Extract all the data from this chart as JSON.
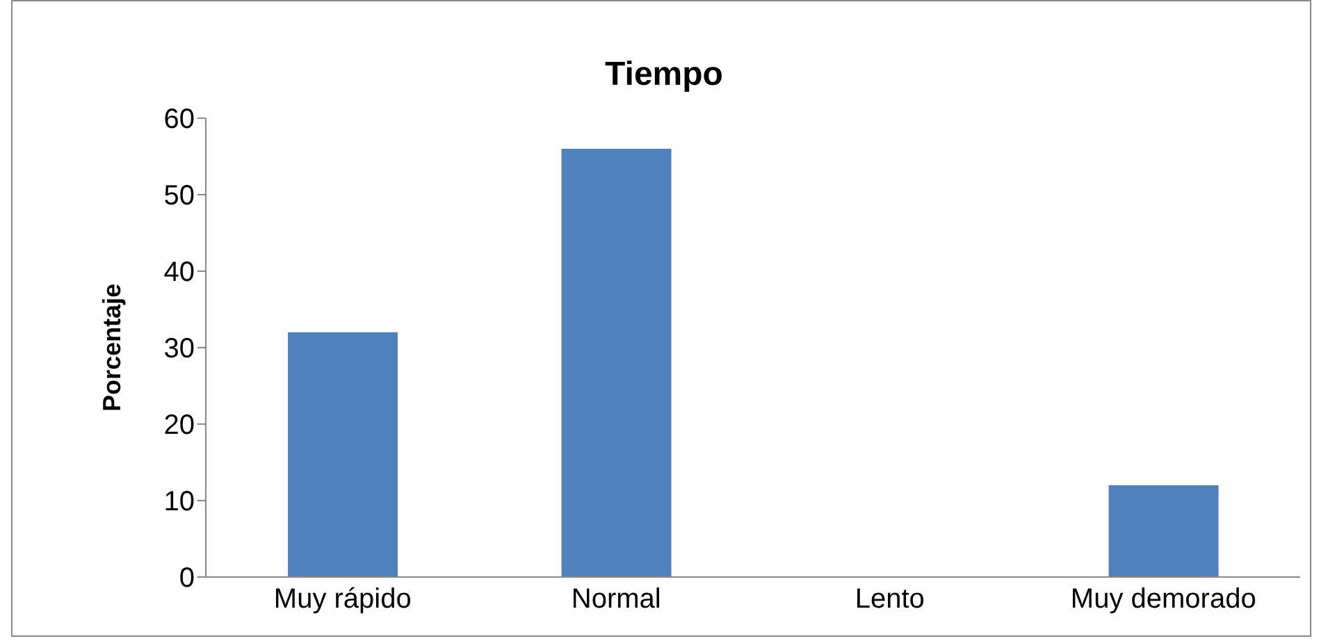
{
  "chart_data": {
    "type": "bar",
    "title": "Tiempo",
    "ylabel": "Porcentaje",
    "categories": [
      "Muy rápido",
      "Normal",
      "Lento",
      "Muy demorado"
    ],
    "values": [
      32,
      56,
      0,
      12
    ],
    "color": "#4f81bd",
    "ylim": [
      0,
      60
    ],
    "yticks": [
      0,
      10,
      20,
      30,
      40,
      50,
      60
    ],
    "grid": false,
    "legend": false
  }
}
